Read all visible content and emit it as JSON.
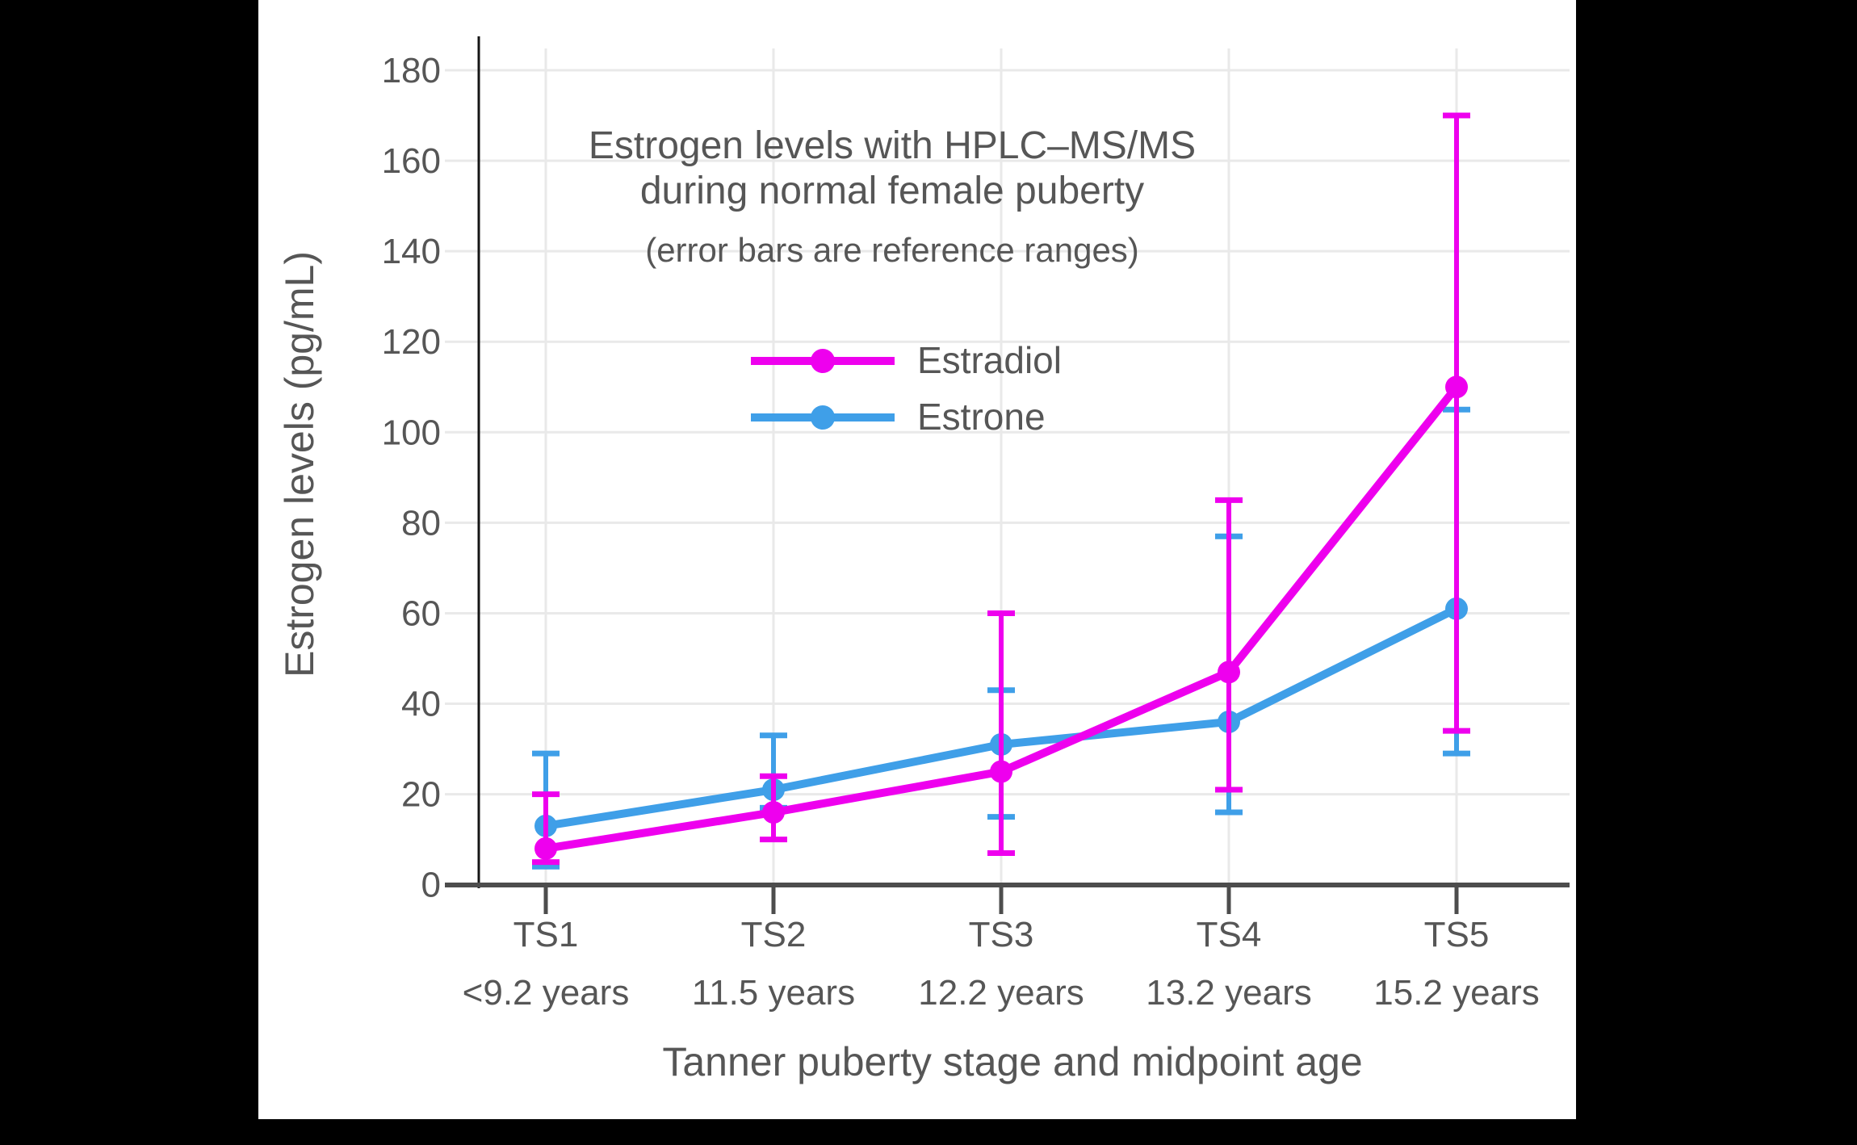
{
  "colors": {
    "background": "#000000",
    "panel": "#ffffff",
    "text": "#565656",
    "gridline": "#e9e9e9",
    "y_axis_line": "#161616",
    "x_axis_line": "#4d4d4d",
    "estradiol": "#EE00EE",
    "estrone": "#3F9FE8"
  },
  "chart_data": {
    "type": "line",
    "title_line1": "Estrogen levels with HPLC–MS/MS",
    "title_line2": "during normal female puberty",
    "subtitle": "(error bars are reference ranges)",
    "xlabel": "Tanner puberty stage and midpoint age",
    "ylabel": "Estrogen levels (pg/mL)",
    "categories": [
      "TS1",
      "TS2",
      "TS3",
      "TS4",
      "TS5"
    ],
    "category_ages": [
      "<9.2 years",
      "11.5 years",
      "12.2 years",
      "13.2 years",
      "15.2 years"
    ],
    "y_ticks": [
      0,
      20,
      40,
      60,
      80,
      100,
      120,
      140,
      160,
      180
    ],
    "ylim": [
      0,
      187
    ],
    "grid": true,
    "legend_position": "top-center-inside",
    "error_bar_meaning": "reference ranges",
    "series": [
      {
        "name": "Estradiol",
        "color": "#EE00EE",
        "values": [
          8,
          16,
          25,
          47,
          110
        ],
        "err_low": [
          5,
          10,
          7,
          21,
          34
        ],
        "err_high": [
          20,
          24,
          60,
          85,
          170
        ],
        "z": 2
      },
      {
        "name": "Estrone",
        "color": "#3F9FE8",
        "values": [
          13,
          21,
          31,
          36,
          61
        ],
        "err_low": [
          4,
          17,
          15,
          16,
          29
        ],
        "err_high": [
          29,
          33,
          43,
          77,
          105
        ],
        "z": 1
      }
    ]
  }
}
